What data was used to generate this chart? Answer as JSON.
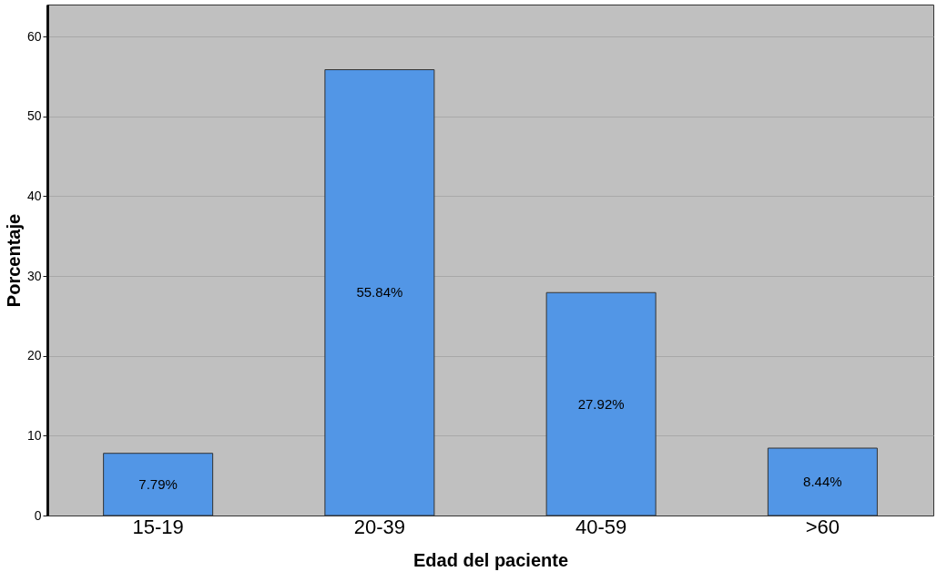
{
  "chart_data": {
    "type": "bar",
    "xlabel": "Edad del paciente",
    "ylabel": "Porcentaje",
    "categories": [
      "15-19",
      "20-39",
      "40-59",
      ">60"
    ],
    "values": [
      7.79,
      55.84,
      27.92,
      8.44
    ],
    "value_labels": [
      "7.79%",
      "55.84%",
      "27.92%",
      "8.44%"
    ],
    "color": "#5296e6",
    "ylim": [
      0,
      64
    ],
    "yticks": [
      0,
      10,
      20,
      30,
      40,
      50,
      60
    ],
    "grid": "y"
  }
}
